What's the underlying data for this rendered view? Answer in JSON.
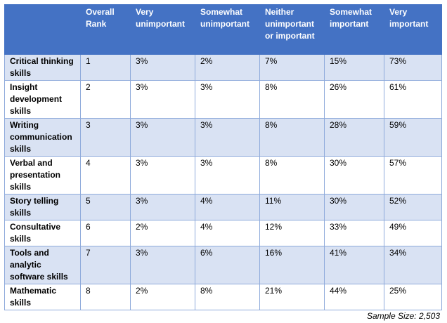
{
  "table": {
    "headers": [
      "",
      "Overall Rank",
      "Very unimportant",
      "Somewhat unimportant",
      "Neither unimportant or important",
      "Somewhat important",
      "Very important"
    ],
    "rows": [
      {
        "skill": "Critical thinking skills",
        "values": [
          "1",
          "3%",
          "2%",
          "7%",
          "15%",
          "73%"
        ]
      },
      {
        "skill": "Insight development skills",
        "values": [
          "2",
          "3%",
          "3%",
          "8%",
          "26%",
          "61%"
        ]
      },
      {
        "skill": "Writing communication skills",
        "values": [
          "3",
          "3%",
          "3%",
          "8%",
          "28%",
          "59%"
        ]
      },
      {
        "skill": "Verbal and presentation skills",
        "values": [
          "4",
          "3%",
          "3%",
          "8%",
          "30%",
          "57%"
        ]
      },
      {
        "skill": "Story telling skills",
        "values": [
          "5",
          "3%",
          "4%",
          "11%",
          "30%",
          "52%"
        ]
      },
      {
        "skill": "Consultative skills",
        "values": [
          "6",
          "2%",
          "4%",
          "12%",
          "33%",
          "49%"
        ]
      },
      {
        "skill": "Tools and analytic software skills",
        "values": [
          "7",
          "3%",
          "6%",
          "16%",
          "41%",
          "34%"
        ]
      },
      {
        "skill": "Mathematic skills",
        "values": [
          "8",
          "2%",
          "8%",
          "21%",
          "44%",
          "25%"
        ]
      }
    ]
  },
  "footnote": "Sample Size: 2,503",
  "colors": {
    "header_bg": "#4472c4",
    "header_text": "#ffffff",
    "band_bg": "#d9e2f3",
    "border": "#8eaadb"
  }
}
